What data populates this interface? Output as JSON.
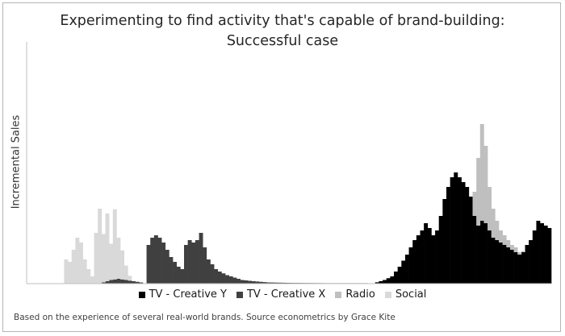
{
  "page": {
    "title_line1": "Experimenting to find activity that's capable of brand-building:",
    "title_line2": "Successful case",
    "footnote": "Based on the experience of several real-world brands. Source econometrics by Grace Kite"
  },
  "chart_data": {
    "type": "area",
    "stacked": true,
    "title": "Experimenting to find activity that's capable of brand-building: Successful case",
    "ylabel": "Incremental Sales",
    "xlabel": "",
    "grid": false,
    "legend_position": "bottom",
    "ylim": [
      0,
      100
    ],
    "x_count": 140,
    "series": [
      {
        "name": "TV - Creative Y",
        "color": "#000000",
        "points": [
          [
            93,
            0.5
          ],
          [
            95,
            1.5
          ],
          [
            97,
            3
          ],
          [
            99,
            7
          ],
          [
            101,
            12
          ],
          [
            103,
            18
          ],
          [
            105,
            22
          ],
          [
            106,
            25
          ],
          [
            107,
            23
          ],
          [
            108,
            20
          ],
          [
            109,
            22
          ],
          [
            110,
            28
          ],
          [
            111,
            35
          ],
          [
            112,
            40
          ],
          [
            113,
            44
          ],
          [
            114,
            46
          ],
          [
            115,
            44
          ],
          [
            116,
            42
          ],
          [
            117,
            40
          ],
          [
            118,
            36
          ],
          [
            119,
            28
          ],
          [
            120,
            24
          ],
          [
            121,
            26
          ],
          [
            122,
            25
          ],
          [
            123,
            22
          ],
          [
            124,
            19
          ],
          [
            125,
            18
          ],
          [
            126,
            17
          ],
          [
            127,
            16
          ],
          [
            128,
            15
          ],
          [
            129,
            14
          ],
          [
            130,
            13
          ],
          [
            131,
            12
          ],
          [
            132,
            13
          ],
          [
            133,
            16
          ],
          [
            134,
            18
          ],
          [
            135,
            22
          ],
          [
            136,
            26
          ],
          [
            137,
            25
          ],
          [
            138,
            24
          ],
          [
            139,
            23
          ]
        ]
      },
      {
        "name": "TV - Creative X",
        "color": "#404040",
        "points": [
          [
            20,
            0.5
          ],
          [
            22,
            1.5
          ],
          [
            24,
            2
          ],
          [
            26,
            1.5
          ],
          [
            28,
            1
          ],
          [
            30,
            0.5
          ],
          [
            31,
            0
          ],
          [
            32,
            16
          ],
          [
            33,
            19
          ],
          [
            34,
            20
          ],
          [
            35,
            19
          ],
          [
            36,
            17
          ],
          [
            37,
            14
          ],
          [
            38,
            11
          ],
          [
            39,
            9
          ],
          [
            40,
            7
          ],
          [
            41,
            6
          ],
          [
            42,
            16
          ],
          [
            43,
            18
          ],
          [
            44,
            17
          ],
          [
            45,
            18
          ],
          [
            46,
            21
          ],
          [
            47,
            15
          ],
          [
            48,
            10
          ],
          [
            49,
            8
          ],
          [
            50,
            6
          ],
          [
            51,
            5
          ],
          [
            53,
            3.5
          ],
          [
            55,
            2.5
          ],
          [
            57,
            1.5
          ],
          [
            60,
            1
          ],
          [
            64,
            0.5
          ],
          [
            70,
            0.3
          ],
          [
            80,
            0.2
          ],
          [
            90,
            0.2
          ],
          [
            95,
            0
          ]
        ]
      },
      {
        "name": "Radio",
        "color": "#bfbfbf",
        "points": [
          [
            118,
            0
          ],
          [
            119,
            10
          ],
          [
            120,
            28
          ],
          [
            121,
            40
          ],
          [
            122,
            32
          ],
          [
            123,
            18
          ],
          [
            124,
            12
          ],
          [
            125,
            8
          ],
          [
            126,
            5
          ],
          [
            127,
            4
          ],
          [
            128,
            3
          ],
          [
            129,
            2
          ],
          [
            130,
            2
          ],
          [
            131,
            1
          ],
          [
            132,
            0.5
          ],
          [
            133,
            0
          ]
        ]
      },
      {
        "name": "Social",
        "color": "#d9d9d9",
        "points": [
          [
            10,
            10
          ],
          [
            11,
            9
          ],
          [
            12,
            14
          ],
          [
            13,
            19
          ],
          [
            14,
            17
          ],
          [
            15,
            10
          ],
          [
            16,
            6
          ],
          [
            17,
            3
          ],
          [
            18,
            21
          ],
          [
            19,
            31
          ],
          [
            20,
            20
          ],
          [
            21,
            28
          ],
          [
            22,
            15
          ],
          [
            23,
            29
          ],
          [
            24,
            17
          ],
          [
            25,
            12
          ],
          [
            26,
            6
          ],
          [
            27,
            2
          ],
          [
            28,
            0
          ]
        ]
      }
    ]
  }
}
